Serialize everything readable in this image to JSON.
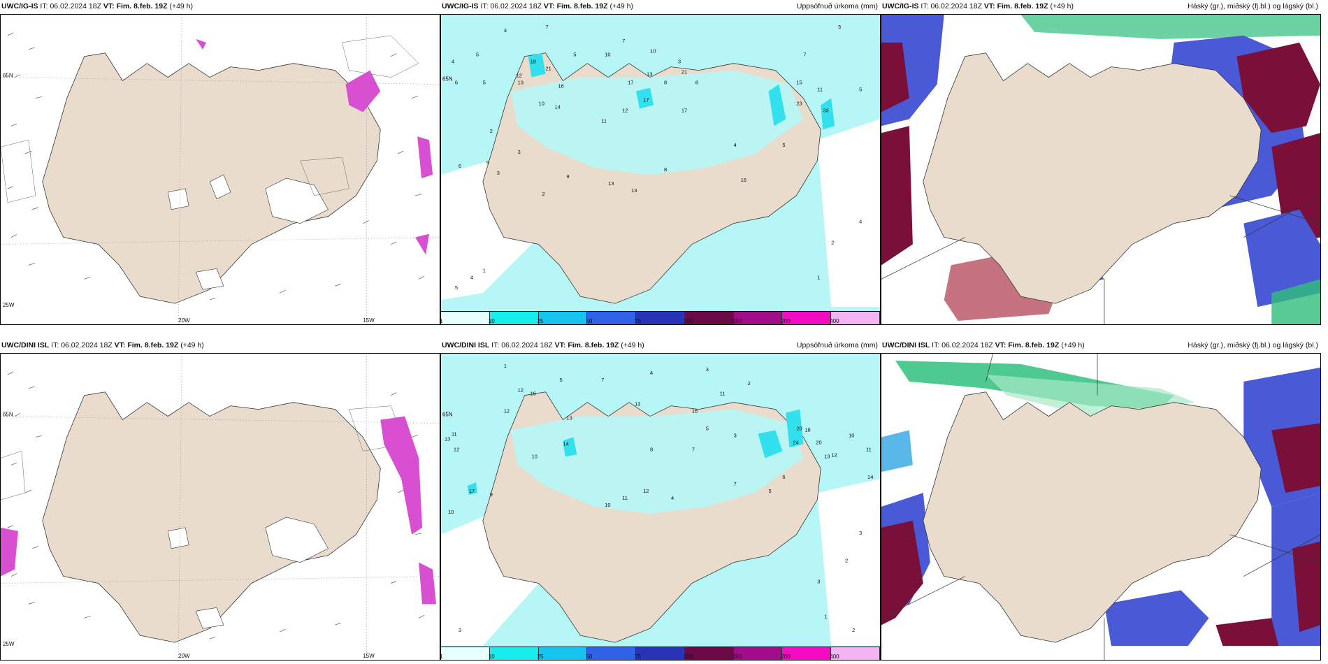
{
  "panels": [
    {
      "id": "p1",
      "model": "UWC/IG-IS",
      "it_label": "IT:",
      "it_value": "06.02.2024 18Z",
      "vt_label": "VT: Fim. 8.feb. 19Z",
      "lead": "(+49 h)",
      "right_title": "",
      "ticks": {
        "lon": [
          "20W",
          "15W"
        ],
        "lat": [
          "65N",
          "25W"
        ]
      }
    },
    {
      "id": "p2",
      "model": "UWC/IG-IS",
      "it_label": "IT:",
      "it_value": "06.02.2024 18Z",
      "vt_label": "VT: Fim. 8.feb. 19Z",
      "lead": "(+49 h)",
      "right_title": "Uppsöfnuð úrkoma (mm)",
      "side_tick": "65N",
      "numbers": [
        "3",
        "7",
        "5",
        "10",
        "7",
        "10",
        "3",
        "5",
        "6",
        "8",
        "18",
        "12",
        "13",
        "21",
        "16",
        "13",
        "17",
        "21",
        "17",
        "8",
        "12",
        "10",
        "14",
        "23",
        "33",
        "11",
        "11",
        "15",
        "9",
        "13",
        "13",
        "8",
        "16",
        "17",
        "4",
        "5",
        "7",
        "5",
        "5",
        "6",
        "3",
        "4",
        "5",
        "2",
        "9",
        "3",
        "2",
        "4",
        "2",
        "1",
        "4",
        "1",
        "5"
      ]
    },
    {
      "id": "p3",
      "model": "UWC/IG-IS",
      "it_label": "IT:",
      "it_value": "06.02.2024 18Z",
      "vt_label": "VT: Fim. 8.feb. 19Z",
      "lead": "(+49 h)",
      "right_title": "Háský (gr.), miðský (fj.bl.) og lágský (bl.)"
    },
    {
      "id": "p4",
      "model": "UWC/DINI ISL",
      "it_label": "IT:",
      "it_value": "06.02.2024 18Z",
      "vt_label": "VT: Fim. 8.feb. 19Z",
      "lead": "(+49 h)",
      "right_title": "",
      "ticks": {
        "lon": [
          "20W",
          "15W"
        ],
        "lat": [
          "65N",
          "25W"
        ]
      }
    },
    {
      "id": "p5",
      "model": "UWC/DINI ISL",
      "it_label": "IT:",
      "it_value": "06.02.2024 18Z",
      "vt_label": "VT: Fim. 8.feb. 19Z",
      "lead": "(+49 h)",
      "right_title": "Uppsöfnuð úrkoma (mm)",
      "side_tick": "65N",
      "numbers": [
        "1",
        "5",
        "7",
        "4",
        "3",
        "2",
        "12",
        "16",
        "13",
        "12",
        "14",
        "10",
        "13",
        "11",
        "12",
        "17",
        "9",
        "10",
        "11",
        "13",
        "16",
        "20",
        "24",
        "18",
        "20",
        "13",
        "12",
        "10",
        "11",
        "14",
        "12",
        "11",
        "10",
        "4",
        "7",
        "5",
        "6",
        "8",
        "7",
        "5",
        "3",
        "2",
        "3",
        "1",
        "2",
        "3",
        "3"
      ]
    },
    {
      "id": "p6",
      "model": "UWC/DINI ISL",
      "it_label": "IT:",
      "it_value": "06.02.2024 18Z",
      "vt_label": "VT: Fim. 8.feb. 19Z",
      "lead": "(+49 h)",
      "right_title": "Háský (gr.), miðský (fj.bl.) og lágský (bl.)"
    }
  ],
  "colorbar": {
    "labels": [
      "1",
      "10",
      "25",
      "50",
      "75",
      "100",
      "150",
      "200",
      "400"
    ],
    "colors": [
      "#e8ffff",
      "#19ecec",
      "#16c2ee",
      "#2f62e6",
      "#2935b8",
      "#6a0a46",
      "#a10c88",
      "#f20cc2",
      "#f2b4f2"
    ]
  },
  "colors": {
    "land": "#e9dccc",
    "rain_light": "#b7f6f6",
    "rain_mid": "#33e0ee",
    "cloud_high": "#2fbf7c",
    "cloud_mid": "#4a5ad6",
    "cloud_low": "#7a0f3a",
    "snow_pink": "#d84fd2"
  }
}
